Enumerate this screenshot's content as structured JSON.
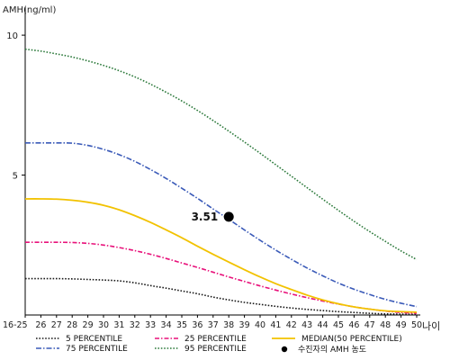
{
  "chart_data": {
    "type": "line",
    "ylabel": "AMH(ng/ml)",
    "xlabel": "나이",
    "ylim": [
      0,
      11
    ],
    "yticks": [
      5,
      10
    ],
    "grid": false,
    "x": [
      "16-25",
      "26",
      "27",
      "28",
      "29",
      "30",
      "31",
      "32",
      "33",
      "34",
      "35",
      "36",
      "37",
      "38",
      "39",
      "40",
      "41",
      "42",
      "43",
      "44",
      "45",
      "46",
      "47",
      "48",
      "49",
      "50"
    ],
    "series": [
      {
        "name": "5 PERCENTILE",
        "color": "#1a1a1a",
        "dash": "1.6 1.8",
        "values": [
          1.3,
          1.3,
          1.3,
          1.29,
          1.27,
          1.25,
          1.22,
          1.15,
          1.05,
          0.96,
          0.86,
          0.76,
          0.64,
          0.54,
          0.45,
          0.38,
          0.31,
          0.25,
          0.2,
          0.16,
          0.12,
          0.09,
          0.06,
          0.04,
          0.03,
          0.02
        ]
      },
      {
        "name": "25 PERCENTILE",
        "color": "#e8117a",
        "dash": "5 2 1.5 2",
        "values": [
          2.6,
          2.6,
          2.6,
          2.59,
          2.56,
          2.5,
          2.41,
          2.3,
          2.17,
          2.02,
          1.86,
          1.7,
          1.53,
          1.36,
          1.2,
          1.04,
          0.89,
          0.75,
          0.62,
          0.5,
          0.39,
          0.29,
          0.21,
          0.14,
          0.09,
          0.06
        ]
      },
      {
        "name": "MEDIAN(50 PERCENTILE)",
        "color": "#f2c200",
        "dash": "",
        "values": [
          4.15,
          4.15,
          4.14,
          4.1,
          4.03,
          3.92,
          3.76,
          3.55,
          3.31,
          3.04,
          2.76,
          2.46,
          2.17,
          1.89,
          1.62,
          1.36,
          1.12,
          0.91,
          0.71,
          0.54,
          0.4,
          0.29,
          0.21,
          0.15,
          0.12,
          0.1
        ]
      },
      {
        "name": "75 PERCENTILE",
        "color": "#3a5ab8",
        "dash": "6 2 1.5 2",
        "values": [
          6.15,
          6.15,
          6.15,
          6.14,
          6.06,
          5.92,
          5.73,
          5.49,
          5.2,
          4.88,
          4.53,
          4.17,
          3.79,
          3.42,
          3.04,
          2.67,
          2.32,
          1.99,
          1.68,
          1.4,
          1.14,
          0.92,
          0.73,
          0.56,
          0.42,
          0.3
        ]
      },
      {
        "name": "95 PERCENTILE",
        "color": "#2d7a3c",
        "dash": "1.6 1.8",
        "values": [
          9.5,
          9.43,
          9.33,
          9.22,
          9.08,
          8.92,
          8.73,
          8.51,
          8.25,
          7.96,
          7.65,
          7.31,
          6.95,
          6.57,
          6.18,
          5.78,
          5.37,
          4.96,
          4.55,
          4.14,
          3.74,
          3.35,
          2.98,
          2.63,
          2.29,
          1.98
        ]
      }
    ],
    "marker": {
      "name": "수진자의 AMH 농도",
      "x": "38",
      "y": 3.51,
      "label": "3.51",
      "color": "#000000"
    }
  }
}
